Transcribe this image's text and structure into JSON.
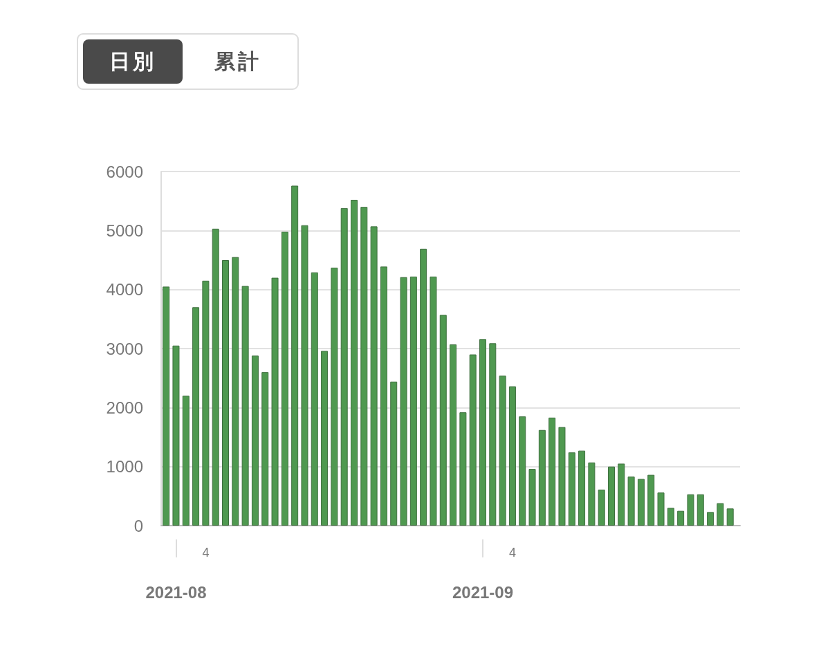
{
  "chart_data": {
    "type": "bar",
    "annotations": [
      "日別",
      "累計"
    ],
    "x": [
      "2021-07-31",
      "2021-08-01",
      "2021-08-02",
      "2021-08-03",
      "2021-08-04",
      "2021-08-05",
      "2021-08-06",
      "2021-08-07",
      "2021-08-08",
      "2021-08-09",
      "2021-08-10",
      "2021-08-11",
      "2021-08-12",
      "2021-08-13",
      "2021-08-14",
      "2021-08-15",
      "2021-08-16",
      "2021-08-17",
      "2021-08-18",
      "2021-08-19",
      "2021-08-20",
      "2021-08-21",
      "2021-08-22",
      "2021-08-23",
      "2021-08-24",
      "2021-08-25",
      "2021-08-26",
      "2021-08-27",
      "2021-08-28",
      "2021-08-29",
      "2021-08-30",
      "2021-08-31",
      "2021-09-01",
      "2021-09-02",
      "2021-09-03",
      "2021-09-04",
      "2021-09-05",
      "2021-09-06",
      "2021-09-07",
      "2021-09-08",
      "2021-09-09",
      "2021-09-10",
      "2021-09-11",
      "2021-09-12",
      "2021-09-13",
      "2021-09-14",
      "2021-09-15",
      "2021-09-16",
      "2021-09-17",
      "2021-09-18",
      "2021-09-19",
      "2021-09-20",
      "2021-09-21",
      "2021-09-22",
      "2021-09-23",
      "2021-09-24",
      "2021-09-25",
      "2021-09-26"
    ],
    "values": [
      4050,
      3050,
      2200,
      3700,
      4150,
      5030,
      4500,
      4550,
      4060,
      2880,
      2600,
      4200,
      4980,
      5760,
      5090,
      4290,
      2960,
      4370,
      5380,
      5520,
      5400,
      5070,
      4390,
      2440,
      4210,
      4220,
      4690,
      4220,
      3570,
      3070,
      1920,
      2900,
      3160,
      3090,
      2540,
      2360,
      1850,
      960,
      1620,
      1830,
      1670,
      1240,
      1270,
      1070,
      610,
      1000,
      1050,
      830,
      790,
      860,
      560,
      300,
      250,
      530,
      530,
      230,
      380,
      290
    ],
    "color": "#4f9950",
    "xlim": [
      "2021-07-30T12:00",
      "2021-09-27T00:00"
    ],
    "xticks": [
      {
        "value": "2021-08-04",
        "label": "4"
      },
      {
        "value": "2021-09-04",
        "label": "4"
      }
    ],
    "x2lim": [
      "2021-07-30T12:00",
      "2021-09-27T00:00"
    ],
    "x2ticks": [
      {
        "value": "2021-08-01",
        "label": "2021-08"
      },
      {
        "value": "2021-09-01",
        "label": "2021-09"
      }
    ],
    "ylim": [
      0,
      6000
    ],
    "yticks": [
      0,
      1000,
      2000,
      3000,
      4000,
      5000,
      6000
    ],
    "grid": "y"
  }
}
